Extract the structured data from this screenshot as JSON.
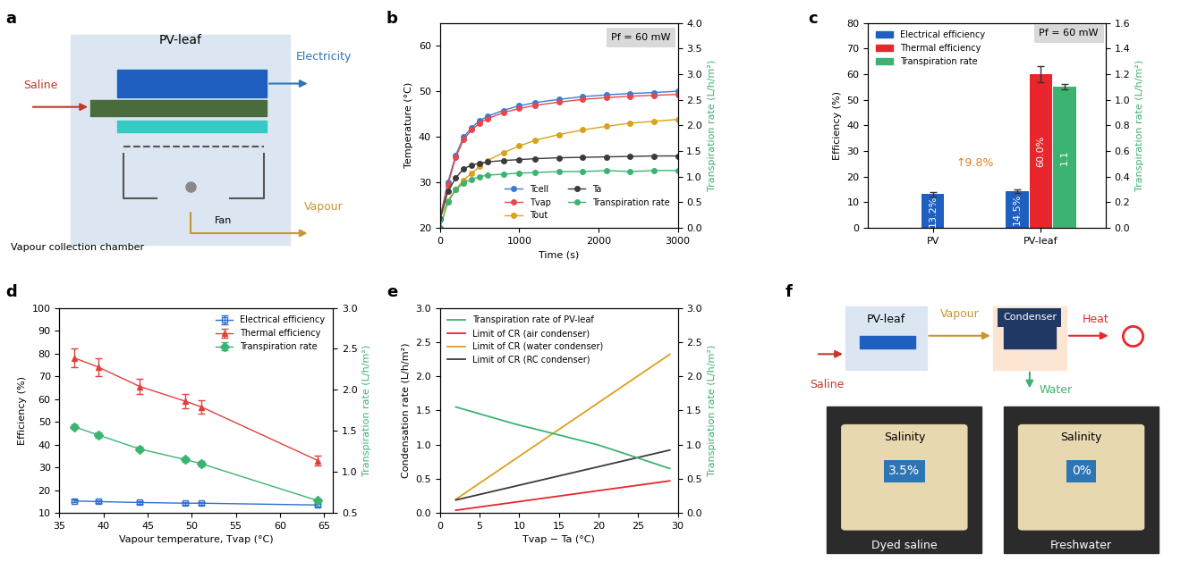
{
  "diagrams": {
    "a": {
      "letter": "a",
      "title": "PV-leaf",
      "input": "Saline",
      "output1": "Electricity",
      "output2": "Vapour",
      "chamber": "Vapour collection chamber",
      "fan": "Fan"
    },
    "f": {
      "letter": "f",
      "box1": "PV-leaf",
      "vapour": "Vapour",
      "condenser": "Condenser",
      "heat": "Heat",
      "saline": "Saline",
      "water": "Water",
      "gauge_title": "Salinity",
      "before": "3.5%",
      "after": "0%",
      "before_label": "Dyed saline",
      "after_label": "Freshwater"
    }
  },
  "chart_data": [
    {
      "letter": "b",
      "type": "scatter",
      "x_label": "Time (s)",
      "y_label": "Temperature (°C)",
      "y2_label": "Transpiration rate (L/h/m²)",
      "annotations": [
        "Pf = 60 mW"
      ],
      "legend": "lower right",
      "xlim": [
        0,
        3000
      ],
      "xticks": [
        0,
        1000,
        2000,
        3000
      ],
      "ylim": [
        20,
        65
      ],
      "yticks": [
        20,
        30,
        40,
        50,
        60
      ],
      "y2lim": [
        0,
        4
      ],
      "y2ticks": [
        {
          "value": 0,
          "label": "0.0"
        },
        {
          "value": 0.5,
          "label": "0.5"
        },
        {
          "value": 1,
          "label": "1.0"
        },
        {
          "value": 1.5,
          "label": "1.5"
        },
        {
          "value": 2,
          "label": "2.0"
        },
        {
          "value": 2.5,
          "label": "2.5"
        },
        {
          "value": 3,
          "label": "3.0"
        },
        {
          "value": 3.5,
          "label": "3.5"
        },
        {
          "value": 4,
          "label": "4.0"
        }
      ],
      "x": [
        0,
        100,
        200,
        300,
        400,
        500,
        600,
        800,
        1000,
        1200,
        1500,
        1800,
        2100,
        2400,
        2700,
        3000
      ],
      "series": [
        {
          "name": "Tcell",
          "color": "#3a7bd5",
          "marker": "o",
          "values": [
            22,
            30,
            36,
            40,
            42,
            43.5,
            44.5,
            45.8,
            46.8,
            47.5,
            48.2,
            48.8,
            49.2,
            49.5,
            49.7,
            50
          ]
        },
        {
          "name": "Tvap",
          "color": "#e8474a",
          "marker": "o",
          "values": [
            22,
            29.5,
            35.5,
            39.5,
            41.5,
            43,
            44,
            45.3,
            46.2,
            46.9,
            47.6,
            48.2,
            48.6,
            48.9,
            49.1,
            49.3
          ]
        },
        {
          "name": "Tout",
          "color": "#d9a21b",
          "marker": "o",
          "values": [
            22,
            26,
            28.5,
            30.5,
            32,
            33.5,
            34.8,
            36.5,
            38,
            39.2,
            40.5,
            41.5,
            42.3,
            43,
            43.4,
            43.8
          ]
        },
        {
          "name": "Ta",
          "color": "#3b3b3b",
          "marker": "o",
          "values": [
            22,
            28,
            31,
            33,
            33.8,
            34.2,
            34.5,
            34.8,
            35,
            35.2,
            35.4,
            35.5,
            35.6,
            35.7,
            35.8,
            35.8
          ]
        },
        {
          "name": "Transpiration rate",
          "color": "#3cb371",
          "marker": "o",
          "axis": "y2",
          "values": [
            0,
            0.5,
            0.75,
            0.88,
            0.95,
            1.0,
            1.03,
            1.05,
            1.07,
            1.08,
            1.1,
            1.1,
            1.12,
            1.1,
            1.12,
            1.12
          ]
        }
      ]
    },
    {
      "letter": "c",
      "type": "bar",
      "y_label": "Efficiency (%)",
      "y2_label": "Transpiration rate (L/h/m²)",
      "annotations": [
        "Pf = 60 mW",
        "↑9.8%"
      ],
      "legend": "upper left",
      "data_labels": true,
      "categories": [
        "PV",
        "PV-leaf"
      ],
      "ylim": [
        0,
        80
      ],
      "yticks": [
        0,
        10,
        20,
        30,
        40,
        50,
        60,
        70,
        80
      ],
      "y2lim": [
        0,
        1.6
      ],
      "y2ticks": [
        {
          "value": 0,
          "label": "0.0"
        },
        {
          "value": 0.2,
          "label": "0.2"
        },
        {
          "value": 0.4,
          "label": "0.4"
        },
        {
          "value": 0.6,
          "label": "0.6"
        },
        {
          "value": 0.8,
          "label": "0.8"
        },
        {
          "value": 1.0,
          "label": "1.0"
        },
        {
          "value": 1.2,
          "label": "1.2"
        },
        {
          "value": 1.4,
          "label": "1.4"
        },
        {
          "value": 1.6,
          "label": "1.6"
        }
      ],
      "series": [
        {
          "name": "Electrical efficiency",
          "color": "#1f5fbf",
          "values": [
            13.2,
            14.5
          ],
          "errors": [
            0.8,
            0.7
          ],
          "value_labels": [
            "13.2%",
            "14.5%"
          ]
        },
        {
          "name": "Thermal efficiency",
          "color": "#e8262b",
          "values": [
            null,
            60.0
          ],
          "errors": [
            null,
            3.0
          ],
          "value_labels": [
            null,
            "60.0%"
          ]
        },
        {
          "name": "Transpiration rate",
          "color": "#3cb371",
          "axis": "y2",
          "values": [
            null,
            1.1
          ],
          "errors": [
            null,
            0.02
          ],
          "value_labels": [
            null,
            "1.1"
          ]
        }
      ]
    },
    {
      "letter": "d",
      "type": "line",
      "x_label": "Vapour temperature, Tvap (°C)",
      "y_label": "Efficiency (%)",
      "y2_label": "Transpiration rate (L/h/m²)",
      "legend": "upper right",
      "xlim": [
        35,
        66
      ],
      "xticks": [
        35,
        40,
        45,
        50,
        55,
        60,
        65
      ],
      "ylim": [
        10,
        100
      ],
      "yticks": [
        10,
        20,
        30,
        40,
        50,
        60,
        70,
        80,
        90,
        100
      ],
      "y2lim": [
        0.5,
        3.0
      ],
      "y2ticks": [
        {
          "value": 0.5,
          "label": "0.5"
        },
        {
          "value": 1.0,
          "label": "1.0"
        },
        {
          "value": 1.5,
          "label": "1.5"
        },
        {
          "value": 2.0,
          "label": "2.0"
        },
        {
          "value": 2.5,
          "label": "2.5"
        },
        {
          "value": 3.0,
          "label": "3.0"
        }
      ],
      "x": [
        36.7,
        39.4,
        44.1,
        49.3,
        51.1,
        64.3
      ],
      "series": [
        {
          "name": "Electrical efficiency",
          "color": "#2f6fd0",
          "marker": "s",
          "values": [
            15.3,
            15.0,
            14.6,
            14.3,
            14.3,
            13.5
          ],
          "errors": [
            0.6,
            0.6,
            0.6,
            0.6,
            0.6,
            0.6
          ]
        },
        {
          "name": "Thermal efficiency",
          "color": "#e0403a",
          "marker": "^",
          "values": [
            78,
            74,
            65.5,
            59,
            56.5,
            33
          ],
          "errors": [
            4,
            3.8,
            3.5,
            3,
            3,
            2
          ]
        },
        {
          "name": "Transpiration rate",
          "color": "#3cb371",
          "marker": "D",
          "axis": "y2",
          "values": [
            1.55,
            1.45,
            1.28,
            1.15,
            1.1,
            0.65
          ],
          "errors": [
            0.03,
            0.03,
            0.03,
            0.03,
            0.03,
            0.03
          ]
        }
      ]
    },
    {
      "letter": "e",
      "type": "line",
      "x_label": "Tvap − Ta (°C)",
      "y_label": "Condensation rate (L/h/m²)",
      "y2_label": "Transpiration rate (L/h/m²)",
      "legend": "upper left",
      "xlim": [
        0,
        30
      ],
      "xticks": [
        0,
        5,
        10,
        15,
        20,
        25,
        30
      ],
      "ylim": [
        0,
        3
      ],
      "yticks": [
        {
          "value": 0,
          "label": "0.0"
        },
        {
          "value": 0.5,
          "label": "0.5"
        },
        {
          "value": 1.0,
          "label": "1.0"
        },
        {
          "value": 1.5,
          "label": "1.5"
        },
        {
          "value": 2.0,
          "label": "2.0"
        },
        {
          "value": 2.5,
          "label": "2.5"
        },
        {
          "value": 3.0,
          "label": "3.0"
        }
      ],
      "y2lim": [
        0,
        3
      ],
      "y2ticks": [
        {
          "value": 0,
          "label": "0.0"
        },
        {
          "value": 0.5,
          "label": "0.5"
        },
        {
          "value": 1.0,
          "label": "1.0"
        },
        {
          "value": 1.5,
          "label": "1.5"
        },
        {
          "value": 2.0,
          "label": "2.0"
        },
        {
          "value": 2.5,
          "label": "2.5"
        },
        {
          "value": 3.0,
          "label": "3.0"
        }
      ],
      "series": [
        {
          "name": "Transpiration rate of PV-leaf",
          "color": "#3cb371",
          "axis": "y2",
          "x": [
            2,
            9.5,
            14.7,
            19.8,
            21.7,
            29
          ],
          "values": [
            1.55,
            1.3,
            1.15,
            1.0,
            0.93,
            0.65
          ]
        },
        {
          "name": "Limit of CR (air condenser)",
          "color": "#e8262b",
          "x": [
            2,
            29
          ],
          "values": [
            0.04,
            0.47
          ]
        },
        {
          "name": "Limit of CR (water condenser)",
          "color": "#d9a21b",
          "x": [
            2,
            29
          ],
          "values": [
            0.2,
            2.32
          ]
        },
        {
          "name": "Limit of CR (RC condenser)",
          "color": "#3b3b3b",
          "x": [
            2,
            29
          ],
          "values": [
            0.19,
            0.92
          ]
        }
      ]
    }
  ]
}
